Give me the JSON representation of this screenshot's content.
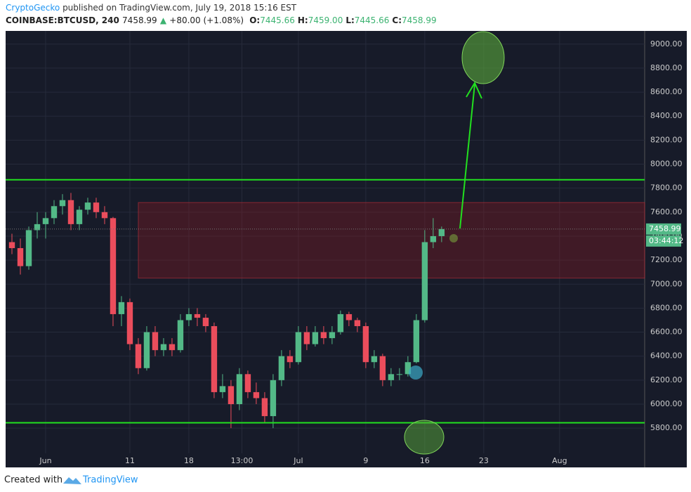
{
  "header": {
    "publisher": "CryptoGecko",
    "published_text": "published on TradingView.com, July 19, 2018 15:16 EST"
  },
  "symbol_bar": {
    "symbol": "COINBASE:BTCUSD, 240",
    "price": "7458.99",
    "arrow": "▲",
    "change": "+80.00 (+1.08%)",
    "fields": [
      {
        "label": "O:",
        "value": "7445.66"
      },
      {
        "label": "H:",
        "value": "7459.00"
      },
      {
        "label": "L:",
        "value": "7445.66"
      },
      {
        "label": "C:",
        "value": "7458.99"
      }
    ]
  },
  "chart_data": {
    "type": "candlestick",
    "up_color": "#53b987",
    "down_color": "#eb4d5c",
    "x": [
      -3,
      -2,
      -1,
      0,
      1,
      2,
      3,
      4,
      5,
      6,
      7,
      8,
      9,
      10,
      11,
      12,
      13,
      14,
      15,
      16,
      17,
      18,
      19,
      20,
      21,
      22,
      23,
      24,
      25,
      26,
      27,
      28,
      29,
      30,
      31,
      32,
      33,
      34,
      35,
      36,
      37,
      38,
      39,
      40,
      41,
      42,
      43,
      44,
      45,
      46,
      47,
      48
    ],
    "open": [
      7350,
      7300,
      7150,
      7450,
      7500,
      7550,
      7650,
      7700,
      7500,
      7620,
      7680,
      7600,
      7550,
      6750,
      6850,
      6500,
      6300,
      6600,
      6450,
      6500,
      6450,
      6700,
      6750,
      6720,
      6650,
      6100,
      6150,
      6000,
      6250,
      6100,
      6050,
      5900,
      6200,
      6400,
      6350,
      6600,
      6500,
      6600,
      6550,
      6600,
      6750,
      6700,
      6650,
      6350,
      6400,
      6200,
      6250,
      6250,
      6350,
      6700,
      7350,
      7400
    ],
    "high": [
      7420,
      7380,
      7480,
      7600,
      7600,
      7700,
      7750,
      7760,
      7650,
      7720,
      7720,
      7650,
      7560,
      6900,
      6880,
      6550,
      6650,
      6650,
      6550,
      6550,
      6750,
      6800,
      6800,
      6750,
      6680,
      6250,
      6200,
      6300,
      6280,
      6180,
      6100,
      6250,
      6450,
      6450,
      6650,
      6650,
      6650,
      6650,
      6650,
      6780,
      6770,
      6720,
      6680,
      6450,
      6420,
      6300,
      6300,
      6400,
      6750,
      7450,
      7550,
      7480
    ],
    "low": [
      7250,
      7080,
      7120,
      7380,
      7380,
      7500,
      7580,
      7450,
      7450,
      7580,
      7550,
      7500,
      6650,
      6650,
      6450,
      6250,
      6280,
      6400,
      6400,
      6400,
      6430,
      6650,
      6650,
      6600,
      6050,
      6050,
      5800,
      5950,
      6050,
      6000,
      5850,
      5800,
      6150,
      6300,
      6330,
      6450,
      6480,
      6500,
      6500,
      6580,
      6650,
      6600,
      6300,
      6300,
      6150,
      6150,
      6200,
      6230,
      6340,
      6680,
      7300,
      7350
    ],
    "close": [
      7300,
      7150,
      7450,
      7500,
      7550,
      7650,
      7700,
      7500,
      7620,
      7680,
      7600,
      7550,
      6750,
      6850,
      6500,
      6300,
      6600,
      6450,
      6500,
      6450,
      6700,
      6750,
      6720,
      6650,
      6100,
      6150,
      6000,
      6250,
      6100,
      6050,
      5900,
      6200,
      6400,
      6350,
      6600,
      6500,
      6600,
      6550,
      6600,
      6750,
      6700,
      6650,
      6350,
      6400,
      6200,
      6250,
      6250,
      6350,
      6700,
      7350,
      7400,
      7459
    ],
    "xlim": [
      -3.75,
      72.1
    ],
    "ylim": [
      5590,
      9110
    ],
    "xticks": [
      {
        "value": 1,
        "label": "Jun"
      },
      {
        "value": 11,
        "label": "11"
      },
      {
        "value": 18,
        "label": "18"
      },
      {
        "value": 24.3,
        "label": "13:00"
      },
      {
        "value": 31,
        "label": "Jul"
      },
      {
        "value": 39,
        "label": "9"
      },
      {
        "value": 46,
        "label": "16"
      },
      {
        "value": 53,
        "label": "23"
      },
      {
        "value": 62,
        "label": "Aug"
      }
    ],
    "yticks": [
      {
        "value": 5800,
        "label": "5800.00"
      },
      {
        "value": 6000,
        "label": "6000.00"
      },
      {
        "value": 6200,
        "label": "6200.00"
      },
      {
        "value": 6400,
        "label": "6400.00"
      },
      {
        "value": 6600,
        "label": "6600.00"
      },
      {
        "value": 6800,
        "label": "6800.00"
      },
      {
        "value": 7000,
        "label": "7000.00"
      },
      {
        "value": 7200,
        "label": "7200.00"
      },
      {
        "value": 7400,
        "label": "7400.00"
      },
      {
        "value": 7600,
        "label": "7600.00"
      },
      {
        "value": 7800,
        "label": "7800.00"
      },
      {
        "value": 8000,
        "label": "8000.00"
      },
      {
        "value": 8200,
        "label": "8200.00"
      },
      {
        "value": 8400,
        "label": "8400.00"
      },
      {
        "value": 8600,
        "label": "8600.00"
      },
      {
        "value": 8800,
        "label": "8800.00"
      },
      {
        "value": 9000,
        "label": "9000.00"
      }
    ],
    "grid": true,
    "levels": [
      7870,
      5845
    ],
    "level_color": "#22e01f",
    "zone": [
      7050,
      7680
    ],
    "zone_color": "#8b1a22",
    "last_price": {
      "value": 7458.99,
      "label": "7458.99"
    },
    "countdown": "03:44:12"
  },
  "footer": {
    "created_with": "Created with",
    "brand": "TradingView"
  }
}
